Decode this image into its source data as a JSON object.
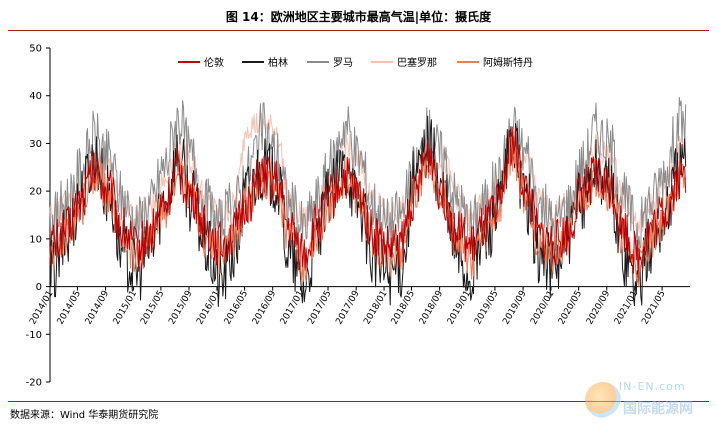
{
  "figure": {
    "title": "图 14：欧洲地区主要城市最高气温|单位：摄氏度",
    "source": "数据来源：Wind 华泰期货研究院",
    "watermark_line1": "IN-EN.com",
    "watermark_line2": "国际能源网"
  },
  "chart_data": {
    "type": "line",
    "title": "图 14：欧洲地区主要城市最高气温|单位：摄氏度",
    "xlabel": "",
    "ylabel": "",
    "ylim": [
      -20,
      50
    ],
    "yticks": [
      -20,
      -10,
      0,
      10,
      20,
      30,
      40,
      50
    ],
    "grid": false,
    "legend": "top-center",
    "xlim": [
      "2014-01-01",
      "2021-08-31"
    ],
    "xticks": [
      "2014/01",
      "2014/05",
      "2014/09",
      "2015/01",
      "2015/05",
      "2015/09",
      "2016/01",
      "2016/05",
      "2016/09",
      "2017/01",
      "2017/05",
      "2017/09",
      "2018/01",
      "2018/05",
      "2018/09",
      "2019/01",
      "2019/05",
      "2019/09",
      "2020/01",
      "2020/05",
      "2020/09",
      "2021/01",
      "2021/05"
    ],
    "series_points_note_free": true,
    "series": [
      {
        "name": "伦敦",
        "color": "#c00000",
        "x": [
          "2014-01-15",
          "2014-03-15",
          "2014-05-15",
          "2014-07-15",
          "2014-09-15",
          "2014-11-15",
          "2015-01-15",
          "2015-03-15",
          "2015-05-15",
          "2015-07-15",
          "2015-09-15",
          "2015-11-15",
          "2016-01-15",
          "2016-03-15",
          "2016-05-15",
          "2016-07-15",
          "2016-09-15",
          "2016-11-15",
          "2017-01-15",
          "2017-03-15",
          "2017-05-15",
          "2017-07-15",
          "2017-09-15",
          "2017-11-15",
          "2018-01-15",
          "2018-03-15",
          "2018-05-15",
          "2018-07-15",
          "2018-09-15",
          "2018-11-15",
          "2019-01-15",
          "2019-03-15",
          "2019-05-15",
          "2019-07-15",
          "2019-09-15",
          "2019-11-15",
          "2020-01-15",
          "2020-03-15",
          "2020-05-15",
          "2020-07-15",
          "2020-09-15",
          "2020-11-15",
          "2021-01-15",
          "2021-03-15",
          "2021-05-15",
          "2021-07-15"
        ],
        "values": [
          9,
          12,
          18,
          24,
          20,
          12,
          8,
          11,
          17,
          24,
          19,
          12,
          9,
          11,
          18,
          23,
          22,
          12,
          7,
          13,
          19,
          23,
          19,
          11,
          8,
          9,
          19,
          28,
          19,
          12,
          8,
          12,
          17,
          30,
          20,
          10,
          9,
          11,
          20,
          23,
          21,
          12,
          6,
          12,
          16,
          23
        ]
      },
      {
        "name": "柏林",
        "color": "#1a1a1a",
        "x": [
          "2014-01-15",
          "2014-03-15",
          "2014-05-15",
          "2014-07-15",
          "2014-09-15",
          "2014-11-15",
          "2015-01-15",
          "2015-03-15",
          "2015-05-15",
          "2015-07-15",
          "2015-09-15",
          "2015-11-15",
          "2016-01-15",
          "2016-03-15",
          "2016-05-15",
          "2016-07-15",
          "2016-09-15",
          "2016-11-15",
          "2017-01-15",
          "2017-03-15",
          "2017-05-15",
          "2017-07-15",
          "2017-09-15",
          "2017-11-15",
          "2018-01-15",
          "2018-03-15",
          "2018-05-15",
          "2018-07-15",
          "2018-09-15",
          "2018-11-15",
          "2019-01-15",
          "2019-03-15",
          "2019-05-15",
          "2019-07-15",
          "2019-09-15",
          "2019-11-15",
          "2020-01-15",
          "2020-03-15",
          "2020-05-15",
          "2020-07-15",
          "2020-09-15",
          "2020-11-15",
          "2021-01-15",
          "2021-03-15",
          "2021-05-15",
          "2021-07-15"
        ],
        "values": [
          3,
          10,
          19,
          27,
          19,
          7,
          3,
          8,
          18,
          27,
          18,
          8,
          1,
          7,
          20,
          25,
          22,
          6,
          0,
          10,
          20,
          25,
          17,
          6,
          3,
          4,
          22,
          30,
          19,
          7,
          2,
          10,
          16,
          30,
          18,
          6,
          4,
          9,
          18,
          25,
          20,
          7,
          0,
          9,
          15,
          25
        ]
      },
      {
        "name": "罗马",
        "color": "#8c8c8c",
        "x": [
          "2014-01-15",
          "2014-03-15",
          "2014-05-15",
          "2014-07-15",
          "2014-09-15",
          "2014-11-15",
          "2015-01-15",
          "2015-03-15",
          "2015-05-15",
          "2015-07-15",
          "2015-09-15",
          "2015-11-15",
          "2016-01-15",
          "2016-03-15",
          "2016-05-15",
          "2016-07-15",
          "2016-09-15",
          "2016-11-15",
          "2017-01-15",
          "2017-03-15",
          "2017-05-15",
          "2017-07-15",
          "2017-09-15",
          "2017-11-15",
          "2018-01-15",
          "2018-03-15",
          "2018-05-15",
          "2018-07-15",
          "2018-09-15",
          "2018-11-15",
          "2019-01-15",
          "2019-03-15",
          "2019-05-15",
          "2019-07-15",
          "2019-09-15",
          "2019-11-15",
          "2020-01-15",
          "2020-03-15",
          "2020-05-15",
          "2020-07-15",
          "2020-09-15",
          "2020-11-15",
          "2021-01-15",
          "2021-03-15",
          "2021-05-15",
          "2021-07-15"
        ],
        "values": [
          14,
          18,
          24,
          31,
          27,
          18,
          13,
          17,
          25,
          35,
          27,
          17,
          13,
          17,
          24,
          33,
          28,
          17,
          12,
          18,
          25,
          34,
          27,
          17,
          13,
          15,
          24,
          32,
          27,
          18,
          13,
          17,
          22,
          33,
          28,
          17,
          13,
          17,
          25,
          33,
          29,
          18,
          12,
          18,
          24,
          34
        ]
      },
      {
        "name": "巴塞罗那",
        "color": "#f6c3b5",
        "x": [
          "2014-01-15",
          "2014-03-15",
          "2014-05-15",
          "2014-07-15",
          "2014-09-15",
          "2014-11-15",
          "2015-01-15",
          "2015-03-15",
          "2015-05-15",
          "2015-07-15",
          "2015-09-15",
          "2015-11-15",
          "2016-01-15",
          "2016-03-15",
          "2016-05-15",
          "2016-07-15",
          "2016-09-15",
          "2016-11-15",
          "2017-01-15",
          "2017-03-15",
          "2017-05-15",
          "2017-07-15",
          "2017-09-15",
          "2017-11-15",
          "2018-01-15",
          "2018-03-15",
          "2018-05-15",
          "2018-07-15",
          "2018-09-15",
          "2018-11-15",
          "2019-01-15",
          "2019-03-15",
          "2019-05-15",
          "2019-07-15",
          "2019-09-15",
          "2019-11-15",
          "2020-01-15",
          "2020-03-15",
          "2020-05-15",
          "2020-07-15",
          "2020-09-15",
          "2020-11-15",
          "2021-01-15",
          "2021-03-15",
          "2021-05-15",
          "2021-07-15"
        ],
        "values": [
          15,
          17,
          22,
          28,
          26,
          18,
          14,
          17,
          22,
          30,
          26,
          18,
          15,
          17,
          34,
          34,
          33,
          18,
          14,
          17,
          23,
          30,
          26,
          18,
          15,
          16,
          22,
          29,
          27,
          19,
          14,
          17,
          21,
          29,
          27,
          18,
          15,
          17,
          22,
          29,
          27,
          19,
          13,
          17,
          21,
          29
        ]
      },
      {
        "name": "阿姆斯特丹",
        "color": "#f07b55",
        "x": [
          "2014-01-15",
          "2014-03-15",
          "2014-05-15",
          "2014-07-15",
          "2014-09-15",
          "2014-11-15",
          "2015-01-15",
          "2015-03-15",
          "2015-05-15",
          "2015-07-15",
          "2015-09-15",
          "2015-11-15",
          "2016-01-15",
          "2016-03-15",
          "2016-05-15",
          "2016-07-15",
          "2016-09-15",
          "2016-11-15",
          "2017-01-15",
          "2017-03-15",
          "2017-05-15",
          "2017-07-15",
          "2017-09-15",
          "2017-11-15",
          "2018-01-15",
          "2018-03-15",
          "2018-05-15",
          "2018-07-15",
          "2018-09-15",
          "2018-11-15",
          "2019-01-15",
          "2019-03-15",
          "2019-05-15",
          "2019-07-15",
          "2019-09-15",
          "2019-11-15",
          "2020-01-15",
          "2020-03-15",
          "2020-05-15",
          "2020-07-15",
          "2020-09-15",
          "2020-11-15",
          "2021-01-15",
          "2021-03-15",
          "2021-05-15",
          "2021-07-15"
        ],
        "values": [
          7,
          11,
          17,
          24,
          19,
          11,
          6,
          10,
          16,
          24,
          18,
          10,
          7,
          10,
          17,
          23,
          22,
          10,
          5,
          11,
          18,
          23,
          18,
          10,
          6,
          7,
          19,
          27,
          18,
          10,
          6,
          11,
          16,
          28,
          19,
          9,
          7,
          10,
          18,
          23,
          20,
          10,
          4,
          10,
          15,
          22
        ]
      }
    ]
  }
}
